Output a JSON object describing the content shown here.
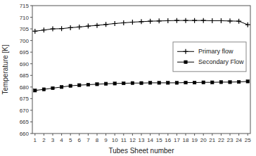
{
  "chart_data": {
    "type": "line",
    "x_label": "Tubes Sheet number",
    "y_label": "Temperature [K]",
    "x": [
      1,
      2,
      3,
      4,
      5,
      6,
      7,
      8,
      9,
      10,
      11,
      12,
      13,
      14,
      15,
      16,
      17,
      18,
      19,
      20,
      21,
      22,
      23,
      24,
      25
    ],
    "series": [
      {
        "name": "Primary flow",
        "color": "#000000",
        "marker": "plus",
        "values": [
          704.0,
          704.5,
          705.0,
          705.1,
          705.5,
          705.8,
          706.2,
          706.5,
          706.9,
          707.3,
          707.6,
          707.9,
          708.1,
          708.3,
          708.4,
          708.5,
          708.6,
          708.6,
          708.6,
          708.6,
          708.5,
          708.5,
          708.4,
          708.3,
          706.8
        ]
      },
      {
        "name": "Secondary Flow",
        "color": "#000000",
        "marker": "square",
        "values": [
          678.5,
          679.0,
          679.5,
          680.0,
          680.5,
          680.8,
          681.0,
          681.2,
          681.4,
          681.5,
          681.6,
          681.7,
          681.7,
          681.8,
          681.8,
          681.8,
          681.8,
          681.9,
          681.9,
          682.0,
          682.0,
          682.1,
          682.1,
          682.2,
          682.4
        ]
      }
    ],
    "xlim": [
      0.7,
      25.3
    ],
    "ylim": [
      660,
      715
    ],
    "xticks": [
      1,
      2,
      3,
      4,
      5,
      6,
      7,
      8,
      9,
      10,
      11,
      12,
      13,
      14,
      15,
      16,
      17,
      18,
      19,
      20,
      21,
      22,
      23,
      24,
      25
    ],
    "yticks": [
      660,
      665,
      670,
      675,
      680,
      685,
      690,
      695,
      700,
      705,
      710,
      715
    ],
    "legend": "right",
    "grid": false
  }
}
